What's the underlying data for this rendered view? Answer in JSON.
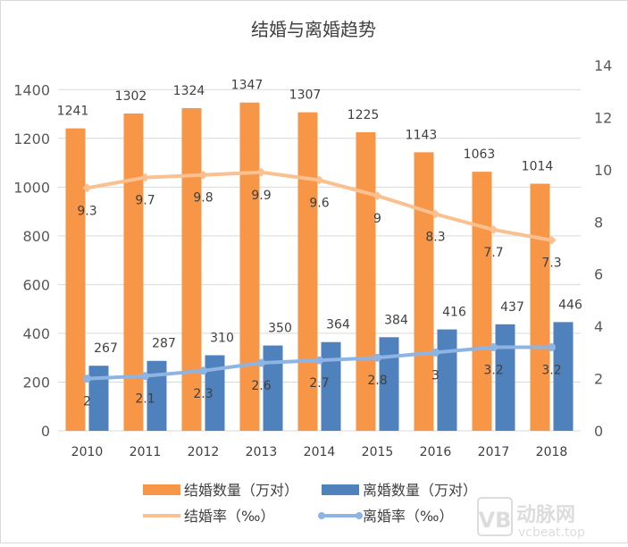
{
  "chart_data": {
    "type": "bar+line",
    "title": "结婚与离婚趋势",
    "categories": [
      "2010",
      "2011",
      "2012",
      "2013",
      "2014",
      "2015",
      "2016",
      "2017",
      "2018"
    ],
    "series": [
      {
        "name": "结婚数量（万对）",
        "type": "bar",
        "axis": "left",
        "color": "#F79646",
        "values": [
          1241,
          1302,
          1324,
          1347,
          1307,
          1225,
          1143,
          1063,
          1014
        ]
      },
      {
        "name": "离婚数量（万对）",
        "type": "bar",
        "axis": "left",
        "color": "#4F81BD",
        "values": [
          267,
          287,
          310,
          350,
          364,
          384,
          416,
          437,
          446
        ]
      },
      {
        "name": "结婚率（‰）",
        "type": "line",
        "axis": "right",
        "color": "#FAC090",
        "values": [
          9.3,
          9.7,
          9.8,
          9.9,
          9.6,
          9,
          8.3,
          7.7,
          7.3
        ]
      },
      {
        "name": "离婚率（‰）",
        "type": "line",
        "axis": "right",
        "color": "#8EB4E3",
        "values": [
          2,
          2.1,
          2.3,
          2.6,
          2.7,
          2.8,
          3,
          3.2,
          3.2
        ]
      }
    ],
    "y_left": {
      "ylim": [
        0,
        1500
      ],
      "ticks": [
        "0",
        "200",
        "400",
        "600",
        "800",
        "1000",
        "1200",
        "1400"
      ]
    },
    "y_right": {
      "ylim": [
        0,
        14
      ],
      "ticks": [
        "0",
        "2",
        "4",
        "6",
        "8",
        "10",
        "12",
        "14"
      ]
    },
    "grid": true,
    "legend": "bottom"
  },
  "watermark": {
    "logo": "动脉网",
    "url": "vcbeat.top"
  }
}
